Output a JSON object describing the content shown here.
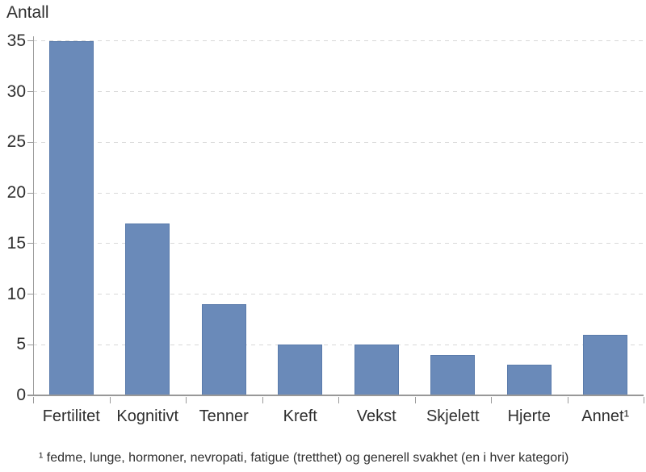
{
  "page": {
    "background": "#ffffff"
  },
  "chart_data": {
    "type": "bar",
    "title": "",
    "ylabel": "Antall",
    "xlabel": "",
    "categories": [
      "Fertilitet",
      "Kognitivt",
      "Tenner",
      "Kreft",
      "Vekst",
      "Skjelett",
      "Hjerte",
      "Annet¹"
    ],
    "values": [
      35,
      17,
      9,
      5,
      5,
      4,
      3,
      6
    ],
    "ylim": [
      0,
      35
    ],
    "yticks": [
      0,
      5,
      10,
      15,
      20,
      25,
      30,
      35
    ],
    "grid": "horizontal-dashed",
    "legend": "none",
    "colors": {
      "bar_fill": "#6a8ab9",
      "bar_border": "#5a7bab",
      "gridline": "#d8d8d8",
      "axis": "#9a9a9a",
      "text": "#2f2f2f"
    }
  },
  "footnote": {
    "text": "¹ fedme, lunge, hormoner, nevropati, fatigue (tretthet) og generell svakhet (en i hver kategori)"
  }
}
